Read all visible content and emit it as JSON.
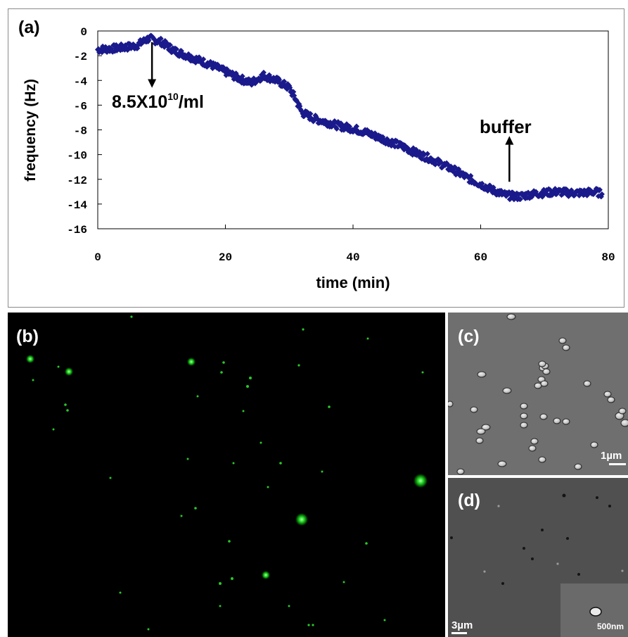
{
  "panels": {
    "a": {
      "label": "(a)"
    },
    "b": {
      "label": "(b)"
    },
    "c": {
      "label": "(c)",
      "scale": "1µm"
    },
    "d": {
      "label": "(d)",
      "scale": "3µm",
      "inset_scale": "500nm"
    }
  },
  "chart_data": {
    "type": "scatter",
    "xlabel": "time (min)",
    "ylabel": "frequency (Hz)",
    "xlim": [
      0,
      80
    ],
    "ylim": [
      -16,
      0
    ],
    "xticks": [
      0,
      20,
      40,
      60,
      80
    ],
    "yticks": [
      0,
      -2,
      -4,
      -6,
      -8,
      -10,
      -12,
      -14,
      -16
    ],
    "marker_color": "#1a1a8c",
    "grid": false,
    "series": [
      {
        "x": [
          0,
          3,
          6,
          8,
          10,
          12,
          15,
          18,
          20,
          22,
          24,
          26,
          28,
          30,
          31,
          32,
          34,
          36,
          38,
          40,
          42,
          44,
          46,
          48,
          50,
          52,
          54,
          56,
          58,
          60,
          62,
          64,
          66,
          68,
          70,
          72,
          74,
          76,
          78,
          79
        ],
        "values": [
          -1.5,
          -1.4,
          -1.2,
          -0.6,
          -0.9,
          -1.6,
          -2.2,
          -2.8,
          -3.3,
          -3.8,
          -4.2,
          -3.6,
          -4.0,
          -4.6,
          -5.5,
          -6.6,
          -7.1,
          -7.4,
          -7.7,
          -7.9,
          -8.2,
          -8.6,
          -9.0,
          -9.4,
          -9.9,
          -10.3,
          -10.8,
          -11.3,
          -11.9,
          -12.4,
          -12.9,
          -13.3,
          -13.4,
          -13.2,
          -13.1,
          -13.0,
          -13.1,
          -13.1,
          -13.0,
          -13.2
        ]
      }
    ],
    "annotations": [
      {
        "text": "8.5X10",
        "sup": "10",
        "suffix": "/ml",
        "x": 8.5,
        "y": -0.8,
        "arrow": "down"
      },
      {
        "text": "buffer",
        "x": 64.5,
        "y": -12.2,
        "arrow": "up"
      }
    ]
  }
}
